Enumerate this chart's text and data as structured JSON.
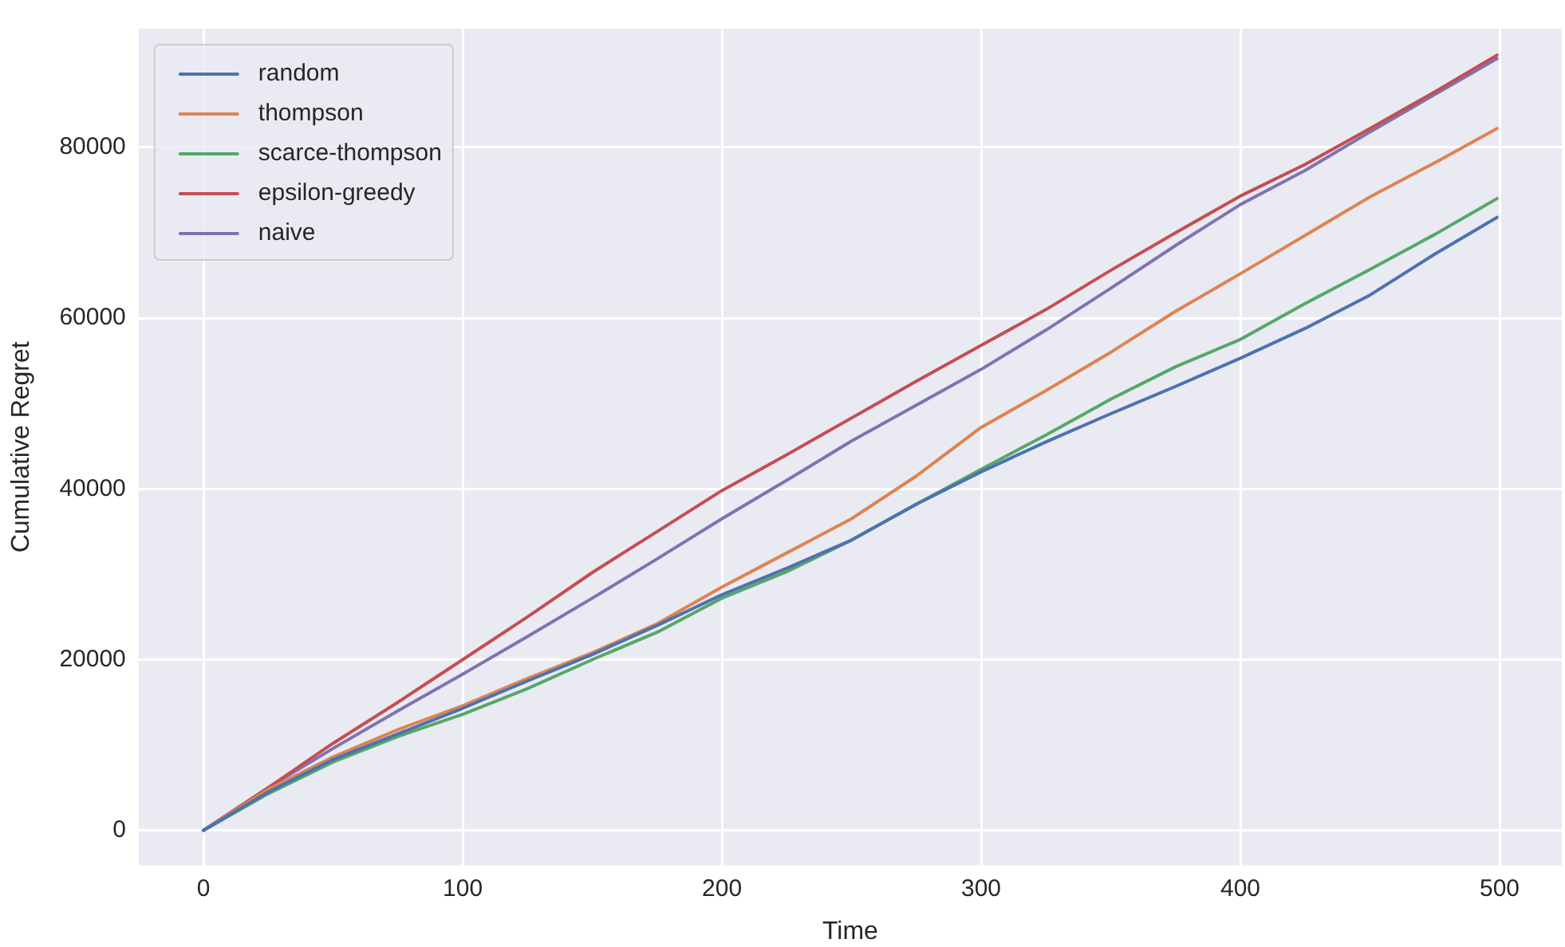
{
  "chart_data": {
    "type": "line",
    "xlabel": "Time",
    "ylabel": "Cumulative Regret",
    "x": [
      0,
      25,
      50,
      75,
      100,
      125,
      150,
      175,
      200,
      225,
      250,
      275,
      300,
      325,
      350,
      375,
      400,
      425,
      450,
      475,
      499
    ],
    "series": [
      {
        "name": "random",
        "color": "#4c72b0",
        "values": [
          0,
          4500,
          8300,
          11300,
          14300,
          17500,
          20600,
          24000,
          27600,
          30700,
          34000,
          38200,
          42000,
          45500,
          48800,
          52000,
          55300,
          58800,
          62700,
          67500,
          71800
        ]
      },
      {
        "name": "thompson",
        "color": "#dd8452",
        "values": [
          0,
          4800,
          8600,
          11800,
          14600,
          17800,
          20800,
          24200,
          28500,
          32500,
          36500,
          41500,
          47200,
          51500,
          56000,
          60800,
          65200,
          69700,
          74200,
          78200,
          82200
        ]
      },
      {
        "name": "scarce-thompson",
        "color": "#55a868",
        "values": [
          0,
          4300,
          8000,
          11000,
          13600,
          16600,
          20000,
          23200,
          27200,
          30300,
          34000,
          38200,
          42300,
          46300,
          50500,
          54300,
          57500,
          61700,
          65700,
          69800,
          74000
        ]
      },
      {
        "name": "epsilon-greedy",
        "color": "#c44e52",
        "values": [
          0,
          5000,
          10200,
          15000,
          20000,
          25000,
          30200,
          35000,
          39800,
          44000,
          48300,
          52600,
          56800,
          61000,
          65600,
          70000,
          74300,
          78000,
          82200,
          86500,
          90800
        ]
      },
      {
        "name": "naive",
        "color": "#8172b3",
        "values": [
          0,
          5000,
          9600,
          14000,
          18300,
          22700,
          27200,
          31800,
          36500,
          41000,
          45600,
          49800,
          54000,
          58600,
          63500,
          68500,
          73300,
          77300,
          81800,
          86200,
          90400
        ]
      }
    ],
    "xlim": [
      -25,
      524
    ],
    "ylim": [
      -4100,
      93900
    ],
    "xticks": [
      0,
      100,
      200,
      300,
      400,
      500
    ],
    "yticks": [
      0,
      20000,
      40000,
      60000,
      80000
    ],
    "grid": true,
    "legend": "top left",
    "marker": "none",
    "line_style": "solid"
  }
}
